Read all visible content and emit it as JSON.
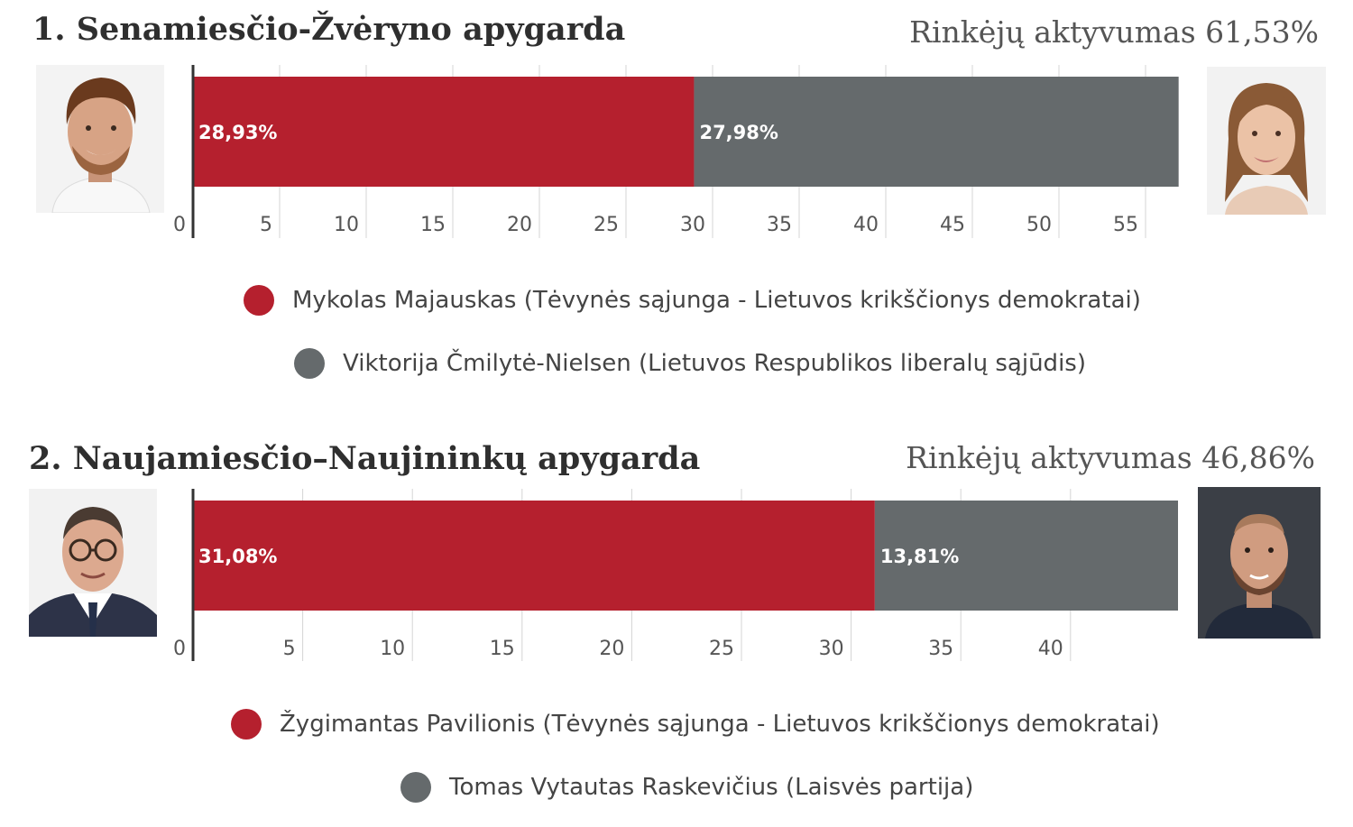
{
  "colors": {
    "red": "#b5202e",
    "gray": "#656a6c",
    "grid": "#d4d4d4",
    "axis": "#333333"
  },
  "districts": [
    {
      "title": "1. Senamiesčio-Žvėryno apygarda",
      "turnout": "Rinkėjų aktyvumas 61,53%",
      "left_photo": "portrait-man-smiling",
      "right_photo": "portrait-woman",
      "chart_data": {
        "type": "bar",
        "orientation": "horizontal-stacked",
        "series": [
          {
            "name": "Mykolas Majauskas (Tėvynės sąjunga - Lietuvos krikščionys demokratai)",
            "value": 28.93,
            "label": "28,93%",
            "color": "#b5202e"
          },
          {
            "name": "Viktorija Čmilytė-Nielsen (Lietuvos Respublikos liberalų sąjūdis)",
            "value": 27.98,
            "label": "27,98%",
            "color": "#656a6c"
          }
        ],
        "xlim": [
          0,
          57
        ],
        "ticks": [
          0,
          5,
          10,
          15,
          20,
          25,
          30,
          35,
          40,
          45,
          50,
          55
        ],
        "tick_labels": [
          "0",
          "5",
          "10",
          "15",
          "20",
          "25",
          "30",
          "35",
          "40",
          "45",
          "50",
          "55"
        ],
        "legend_position": "bottom"
      }
    },
    {
      "title": "2. Naujamiesčio–Naujininkų apygarda",
      "turnout": "Rinkėjų aktyvumas 46,86%",
      "left_photo": "portrait-man-glasses",
      "right_photo": "portrait-man-beard",
      "chart_data": {
        "type": "bar",
        "orientation": "horizontal-stacked",
        "series": [
          {
            "name": "Žygimantas Pavilionis (Tėvynės sąjunga - Lietuvos krikščionys demokratai)",
            "value": 31.08,
            "label": "31,08%",
            "color": "#b5202e"
          },
          {
            "name": "Tomas Vytautas Raskevičius (Laisvės partija)",
            "value": 13.81,
            "label": "13,81%",
            "color": "#656a6c"
          }
        ],
        "xlim": [
          0,
          45
        ],
        "ticks": [
          0,
          5,
          10,
          15,
          20,
          25,
          30,
          35,
          40
        ],
        "tick_labels": [
          "0",
          "5",
          "10",
          "15",
          "20",
          "25",
          "30",
          "35",
          "40"
        ],
        "legend_position": "bottom"
      }
    }
  ]
}
